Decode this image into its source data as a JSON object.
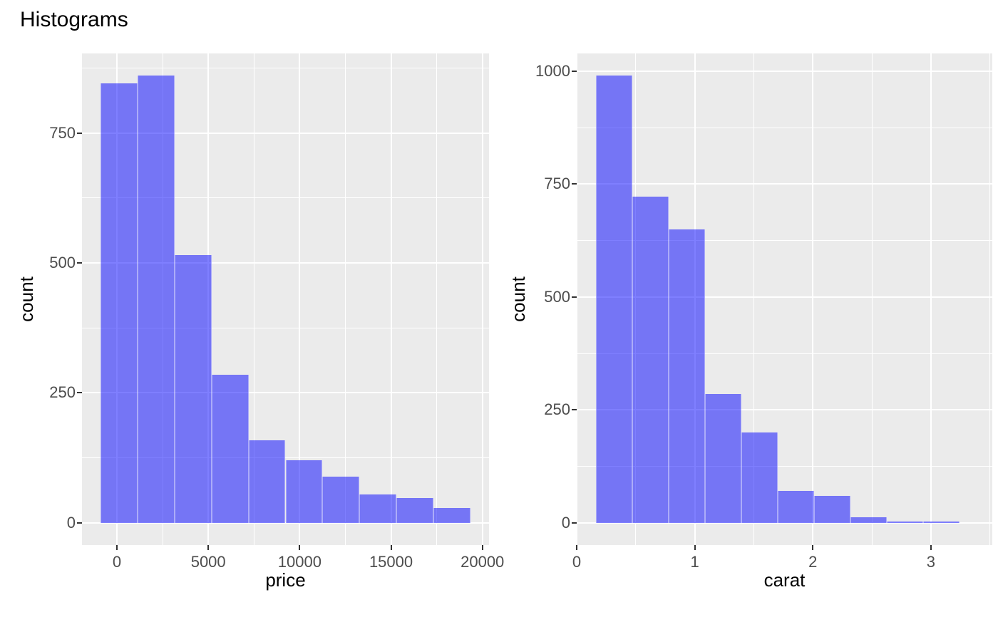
{
  "page": {
    "title": "Histograms"
  },
  "colors": {
    "background": "#ffffff",
    "panel_background": "#ebebeb",
    "grid_major": "#ffffff",
    "grid_minor": "#ffffff",
    "bar_fill": "rgba(0,0,255,0.5)",
    "bar_fill_over_panel_hex": "#7676f5",
    "bar_edge": "rgba(255,255,255,0.4)",
    "axis_text": "#4d4d4d",
    "axis_title": "#000000",
    "tick_mark": "#333333",
    "title_text": "#000000"
  },
  "chart_data": [
    {
      "type": "bar",
      "subtype": "histogram",
      "title": "",
      "xlabel": "price",
      "ylabel": "count",
      "bin_edges": [
        -900,
        1125,
        3150,
        5175,
        7200,
        9225,
        11250,
        13275,
        15300,
        17325,
        19350
      ],
      "counts": [
        845,
        860,
        515,
        285,
        158,
        120,
        88,
        54,
        47,
        28
      ],
      "xlim": [
        -1912.5,
        20362.5
      ],
      "ylim": [
        -43,
        903
      ],
      "x_ticks": [
        0,
        5000,
        10000,
        15000,
        20000
      ],
      "x_tick_labels": [
        "0",
        "5000",
        "10000",
        "15000",
        "20000"
      ],
      "y_ticks": [
        0,
        250,
        500,
        750
      ],
      "y_tick_labels": [
        "0",
        "250",
        "500",
        "750"
      ],
      "x_minor_ticks": [
        2500,
        7500,
        12500,
        17500
      ],
      "y_minor_ticks": [
        125,
        375,
        625,
        875
      ],
      "grid": true,
      "legend": "none"
    },
    {
      "type": "bar",
      "subtype": "histogram",
      "title": "",
      "xlabel": "carat",
      "ylabel": "count",
      "bin_edges": [
        0.16,
        0.468,
        0.776,
        1.084,
        1.392,
        1.7,
        2.008,
        2.316,
        2.624,
        2.932,
        3.24
      ],
      "counts": [
        990,
        722,
        650,
        285,
        200,
        70,
        60,
        12,
        3,
        2
      ],
      "xlim": [
        0,
        3.52
      ],
      "ylim": [
        -49.5,
        1039.5
      ],
      "x_ticks": [
        0,
        1,
        2,
        3
      ],
      "x_tick_labels": [
        "0",
        "1",
        "2",
        "3"
      ],
      "y_ticks": [
        0,
        250,
        500,
        750,
        1000
      ],
      "y_tick_labels": [
        "0",
        "250",
        "500",
        "750",
        "1000"
      ],
      "x_minor_ticks": [
        0.5,
        1.5,
        2.5,
        3.5
      ],
      "y_minor_ticks": [
        125,
        375,
        625,
        875
      ],
      "grid": true,
      "legend": "none"
    }
  ]
}
